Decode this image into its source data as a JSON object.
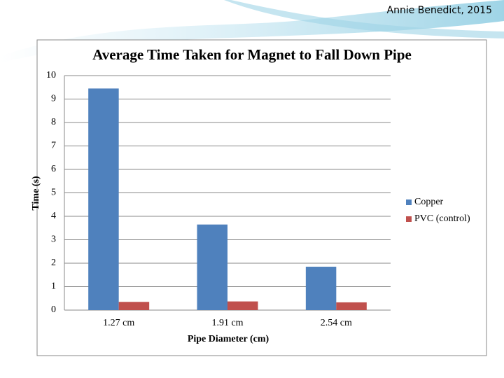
{
  "header": {
    "author": "Annie Benedict, 2015"
  },
  "chart_data": {
    "type": "bar",
    "title": "Average Time Taken for Magnet to Fall Down Pipe",
    "x_label": "Pipe Diameter (cm)",
    "y_label": "Time (s)",
    "categories": [
      "1.27 cm",
      "1.91 cm",
      "2.54 cm"
    ],
    "series": [
      {
        "name": "Copper",
        "color": "#4f81bd",
        "values": [
          9.45,
          3.65,
          1.85
        ]
      },
      {
        "name": "PVC (control)",
        "color": "#c0504d",
        "values": [
          0.35,
          0.37,
          0.33
        ]
      }
    ],
    "ylim": [
      0,
      10
    ],
    "yticks": [
      0,
      1,
      2,
      3,
      4,
      5,
      6,
      7,
      8,
      9,
      10
    ],
    "grid": true,
    "legend": "right"
  }
}
